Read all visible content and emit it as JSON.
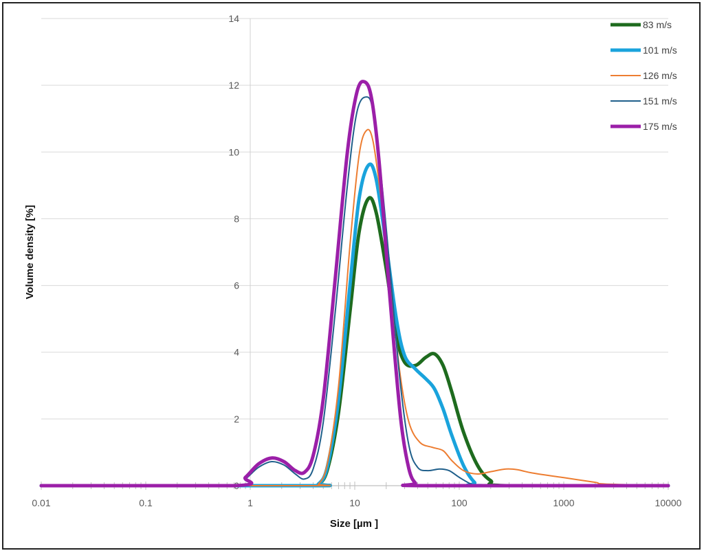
{
  "chart_data": {
    "type": "line",
    "title": "",
    "xlabel": "Size [µm ]",
    "ylabel": "Volume density [%]",
    "x_scale": "log",
    "xlim": [
      0.01,
      10000
    ],
    "ylim": [
      0,
      14
    ],
    "x_ticks": [
      "0.01",
      "0.1",
      "1",
      "10",
      "100",
      "1000",
      "10000"
    ],
    "y_ticks": [
      "0",
      "2",
      "4",
      "6",
      "8",
      "10",
      "12",
      "14"
    ],
    "grid": "horizontal",
    "legend_position": "top-right",
    "series": [
      {
        "name": "83 m/s",
        "color": "#1e6b1e",
        "x": [
          0.01,
          3.5,
          4.5,
          5.5,
          7,
          9,
          11,
          13.5,
          16,
          20,
          25,
          30,
          38,
          48,
          58,
          70,
          85,
          110,
          150,
          200,
          280,
          10000
        ],
        "y": [
          0,
          0,
          0.05,
          0.5,
          2.2,
          5.2,
          7.6,
          8.6,
          8.2,
          6.5,
          4.5,
          3.7,
          3.6,
          3.85,
          3.95,
          3.6,
          2.8,
          1.6,
          0.6,
          0.15,
          0,
          0
        ]
      },
      {
        "name": "101 m/s",
        "color": "#1aa3dc",
        "x": [
          0.01,
          3.5,
          4.5,
          5.5,
          7,
          9,
          11,
          13.5,
          16,
          20,
          25,
          30,
          38,
          48,
          58,
          70,
          85,
          110,
          140,
          170,
          10000
        ],
        "y": [
          0,
          0,
          0.05,
          0.6,
          2.6,
          6,
          8.6,
          9.6,
          9.2,
          7.2,
          5,
          3.9,
          3.5,
          3.2,
          2.9,
          2.3,
          1.5,
          0.6,
          0.1,
          0,
          0
        ]
      },
      {
        "name": "126 m/s",
        "color": "#ed7d31",
        "x": [
          0.01,
          3.5,
          4.5,
          5.5,
          7,
          9,
          11,
          13,
          15,
          18,
          22,
          27,
          33,
          42,
          55,
          70,
          85,
          110,
          150,
          200,
          280,
          360,
          500,
          1000,
          2000,
          2500,
          10000
        ],
        "y": [
          0,
          0,
          0.05,
          0.7,
          3,
          7.2,
          9.9,
          10.65,
          10.3,
          8.5,
          6,
          3.4,
          1.9,
          1.3,
          1.15,
          1.05,
          0.75,
          0.45,
          0.35,
          0.42,
          0.5,
          0.48,
          0.38,
          0.24,
          0.1,
          0.05,
          0
        ]
      },
      {
        "name": "151 m/s",
        "color": "#1f5f8b",
        "x": [
          0.01,
          0.7,
          0.9,
          1.2,
          1.6,
          2.1,
          2.7,
          3.3,
          4,
          5,
          6.5,
          8.5,
          10.5,
          13,
          15,
          18,
          22,
          27,
          33,
          40,
          50,
          65,
          80,
          100,
          130,
          160,
          10000
        ],
        "y": [
          0,
          0,
          0.2,
          0.55,
          0.72,
          0.62,
          0.35,
          0.2,
          0.5,
          1.9,
          5.2,
          9,
          11.2,
          11.65,
          11.2,
          9.2,
          6.3,
          3.2,
          1.2,
          0.55,
          0.45,
          0.5,
          0.45,
          0.25,
          0.05,
          0,
          0
        ]
      },
      {
        "name": "175 m/s",
        "color": "#9b1fa8",
        "x": [
          0.01,
          0.7,
          0.9,
          1.2,
          1.6,
          2.1,
          2.7,
          3.3,
          4,
          5,
          6.5,
          8.5,
          10.5,
          12.5,
          14.5,
          17,
          20,
          24,
          28,
          33,
          38,
          45,
          10000
        ],
        "y": [
          0,
          0,
          0.25,
          0.65,
          0.83,
          0.72,
          0.45,
          0.4,
          0.9,
          2.6,
          6.2,
          10,
          11.8,
          12.1,
          11.6,
          9.8,
          7,
          4,
          1.8,
          0.5,
          0.08,
          0,
          0
        ]
      }
    ]
  }
}
